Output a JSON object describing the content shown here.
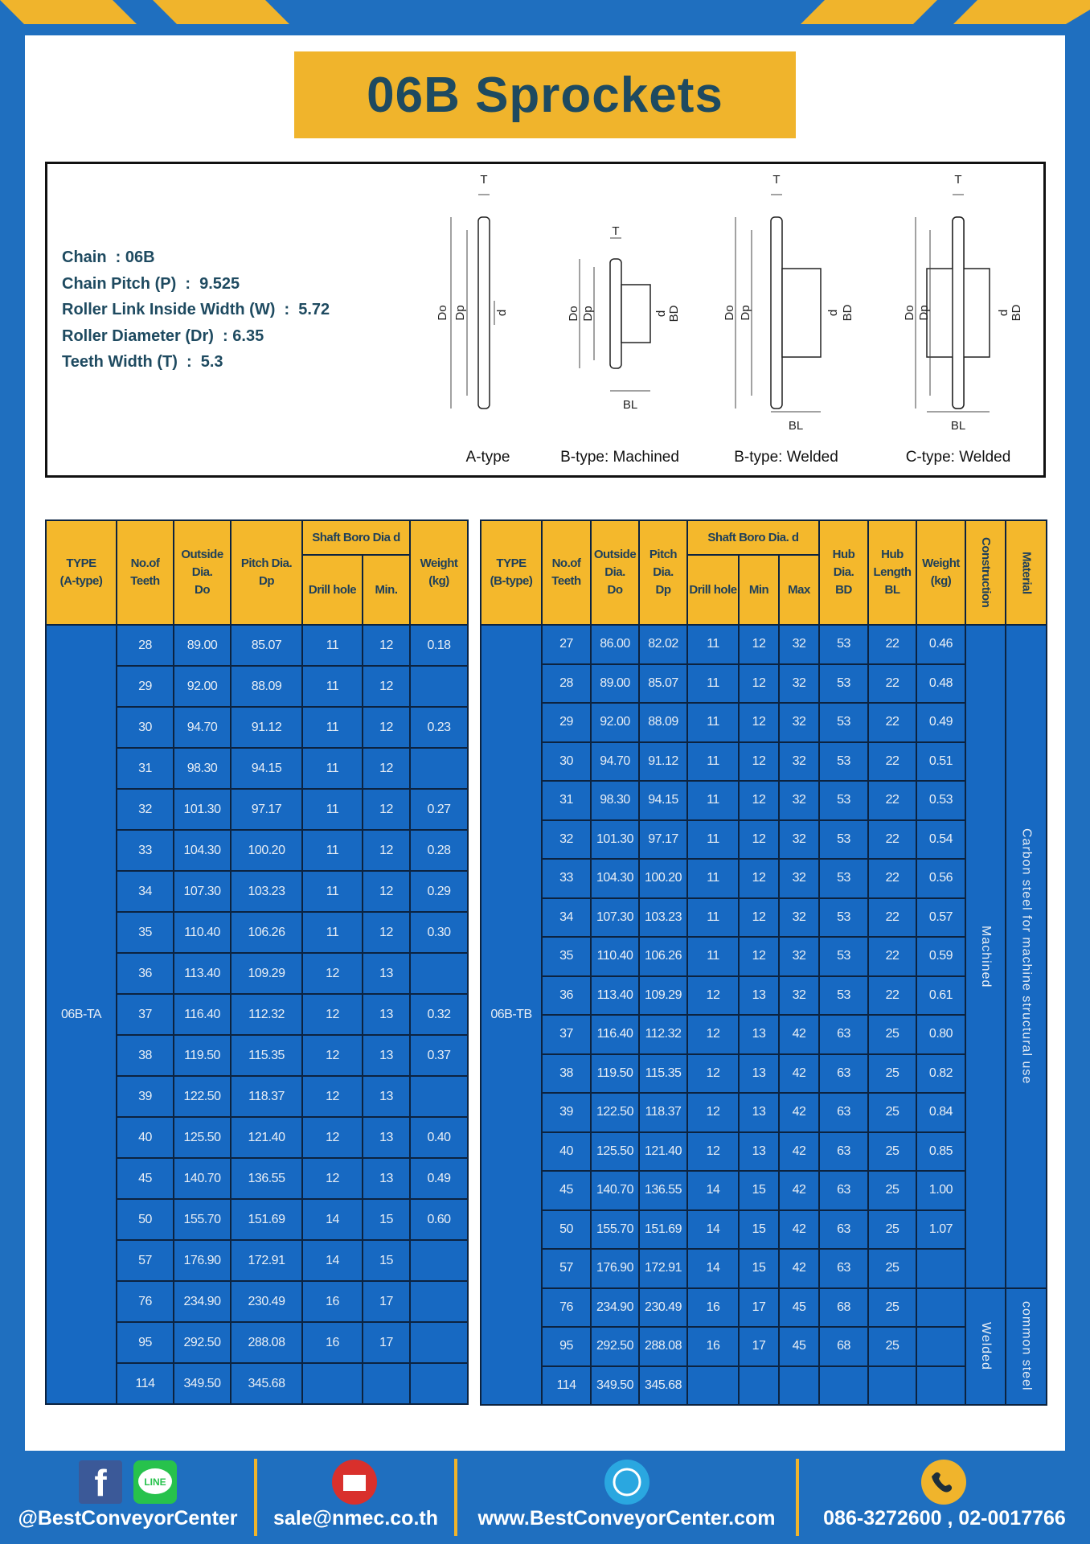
{
  "header": {
    "title": "06B Sprockets"
  },
  "specs": [
    "Chain  : 06B",
    "Chain Pitch (P)  :  9.525",
    "Roller Link Inside Width (W)  :  5.72",
    "Roller Diameter (Dr)  : 6.35",
    "Teeth Width (T)  :  5.3"
  ],
  "diagrams": [
    {
      "caption": "A-type",
      "labels": [
        "T",
        "Do",
        "Dp",
        "d"
      ]
    },
    {
      "caption": "B-type: Machined",
      "labels": [
        "T",
        "Do",
        "Dp",
        "d",
        "BD",
        "BL"
      ]
    },
    {
      "caption": "B-type: Welded",
      "labels": [
        "T",
        "Do",
        "Dp",
        "d",
        "BD",
        "BL"
      ]
    },
    {
      "caption": "C-type: Welded",
      "labels": [
        "T",
        "Do",
        "Dp",
        "d",
        "BD",
        "BL"
      ]
    }
  ],
  "table_a": {
    "headers": [
      {
        "lines": [
          "TYPE",
          "(A-type)"
        ]
      },
      {
        "lines": [
          "No.of",
          "Teeth"
        ]
      },
      {
        "lines": [
          "Outside",
          "Dia.",
          "Do"
        ]
      },
      {
        "lines": [
          "Pitch Dia.",
          "Dp"
        ]
      },
      {
        "lines": [
          "Shaft Boro Dia d"
        ],
        "sub": [
          "Drill hole",
          "Min."
        ]
      },
      {
        "lines": [
          "Weight",
          "(kg)"
        ]
      }
    ],
    "type_label": "06B-TA",
    "rows": [
      [
        "28",
        "89.00",
        "85.07",
        "11",
        "12",
        "0.18"
      ],
      [
        "29",
        "92.00",
        "88.09",
        "11",
        "12",
        null
      ],
      [
        "30",
        "94.70",
        "91.12",
        "11",
        "12",
        "0.23"
      ],
      [
        "31",
        "98.30",
        "94.15",
        "11",
        "12",
        null
      ],
      [
        "32",
        "101.30",
        "97.17",
        "11",
        "12",
        "0.27"
      ],
      [
        "33",
        "104.30",
        "100.20",
        "11",
        "12",
        "0.28"
      ],
      [
        "34",
        "107.30",
        "103.23",
        "11",
        "12",
        "0.29"
      ],
      [
        "35",
        "110.40",
        "106.26",
        "11",
        "12",
        "0.30"
      ],
      [
        "36",
        "113.40",
        "109.29",
        "12",
        "13",
        null
      ],
      [
        "37",
        "116.40",
        "112.32",
        "12",
        "13",
        "0.32"
      ],
      [
        "38",
        "119.50",
        "115.35",
        "12",
        "13",
        "0.37"
      ],
      [
        "39",
        "122.50",
        "118.37",
        "12",
        "13",
        null
      ],
      [
        "40",
        "125.50",
        "121.40",
        "12",
        "13",
        "0.40"
      ],
      [
        "45",
        "140.70",
        "136.55",
        "12",
        "13",
        "0.49"
      ],
      [
        "50",
        "155.70",
        "151.69",
        "14",
        "15",
        "0.60"
      ],
      [
        "57",
        "176.90",
        "172.91",
        "14",
        "15",
        null
      ],
      [
        "76",
        "234.90",
        "230.49",
        "16",
        "17",
        null
      ],
      [
        "95",
        "292.50",
        "288.08",
        "16",
        "17",
        null
      ],
      [
        "114",
        "349.50",
        "345.68",
        null,
        null,
        null
      ]
    ]
  },
  "table_b": {
    "headers": [
      {
        "lines": [
          "TYPE",
          "(B-type)"
        ]
      },
      {
        "lines": [
          "No.of",
          "Teeth"
        ]
      },
      {
        "lines": [
          "Outside",
          "Dia.",
          "Do"
        ]
      },
      {
        "lines": [
          "Pitch",
          "Dia.",
          "Dp"
        ]
      },
      {
        "lines": [
          "Shaft Boro Dia. d"
        ],
        "sub": [
          "Drill hole",
          "Min",
          "Max"
        ]
      },
      {
        "lines": [
          "Hub",
          "Dia.",
          "BD"
        ]
      },
      {
        "lines": [
          "Hub",
          "Length",
          "BL"
        ]
      },
      {
        "lines": [
          "Weight",
          "(kg)"
        ]
      },
      {
        "lines": [
          "Construction"
        ],
        "vertical": true
      },
      {
        "lines": [
          "Material"
        ],
        "vertical": true
      }
    ],
    "type_label": "06B-TB",
    "groups": [
      {
        "construction": "Machined",
        "material": "Carbon steel for machine structural use",
        "rows": [
          [
            "27",
            "86.00",
            "82.02",
            "11",
            "12",
            "32",
            "53",
            "22",
            "0.46"
          ],
          [
            "28",
            "89.00",
            "85.07",
            "11",
            "12",
            "32",
            "53",
            "22",
            "0.48"
          ],
          [
            "29",
            "92.00",
            "88.09",
            "11",
            "12",
            "32",
            "53",
            "22",
            "0.49"
          ],
          [
            "30",
            "94.70",
            "91.12",
            "11",
            "12",
            "32",
            "53",
            "22",
            "0.51"
          ],
          [
            "31",
            "98.30",
            "94.15",
            "11",
            "12",
            "32",
            "53",
            "22",
            "0.53"
          ],
          [
            "32",
            "101.30",
            "97.17",
            "11",
            "12",
            "32",
            "53",
            "22",
            "0.54"
          ],
          [
            "33",
            "104.30",
            "100.20",
            "11",
            "12",
            "32",
            "53",
            "22",
            "0.56"
          ],
          [
            "34",
            "107.30",
            "103.23",
            "11",
            "12",
            "32",
            "53",
            "22",
            "0.57"
          ],
          [
            "35",
            "110.40",
            "106.26",
            "11",
            "12",
            "32",
            "53",
            "22",
            "0.59"
          ],
          [
            "36",
            "113.40",
            "109.29",
            "12",
            "13",
            "32",
            "53",
            "22",
            "0.61"
          ],
          [
            "37",
            "116.40",
            "112.32",
            "12",
            "13",
            "42",
            "63",
            "25",
            "0.80"
          ],
          [
            "38",
            "119.50",
            "115.35",
            "12",
            "13",
            "42",
            "63",
            "25",
            "0.82"
          ],
          [
            "39",
            "122.50",
            "118.37",
            "12",
            "13",
            "42",
            "63",
            "25",
            "0.84"
          ],
          [
            "40",
            "125.50",
            "121.40",
            "12",
            "13",
            "42",
            "63",
            "25",
            "0.85"
          ],
          [
            "45",
            "140.70",
            "136.55",
            "14",
            "15",
            "42",
            "63",
            "25",
            "1.00"
          ],
          [
            "50",
            "155.70",
            "151.69",
            "14",
            "15",
            "42",
            "63",
            "25",
            "1.07"
          ],
          [
            "57",
            "176.90",
            "172.91",
            "14",
            "15",
            "42",
            "63",
            "25",
            null
          ]
        ]
      },
      {
        "construction": "Welded",
        "material": "common steel",
        "rows": [
          [
            "76",
            "234.90",
            "230.49",
            "16",
            "17",
            "45",
            "68",
            "25",
            null
          ],
          [
            "95",
            "292.50",
            "288.08",
            "16",
            "17",
            "45",
            "68",
            "25",
            null
          ],
          [
            "114",
            "349.50",
            "345.68",
            null,
            null,
            null,
            null,
            null,
            null
          ]
        ]
      }
    ]
  },
  "footer": {
    "facebook_icon": "f",
    "line_icon": "LINE",
    "social": "@BestConveyorCenter",
    "email": "sale@nmec.co.th",
    "website": "www.BestConveyorCenter.com",
    "phone": "086-3272600 , 02-0017766"
  }
}
